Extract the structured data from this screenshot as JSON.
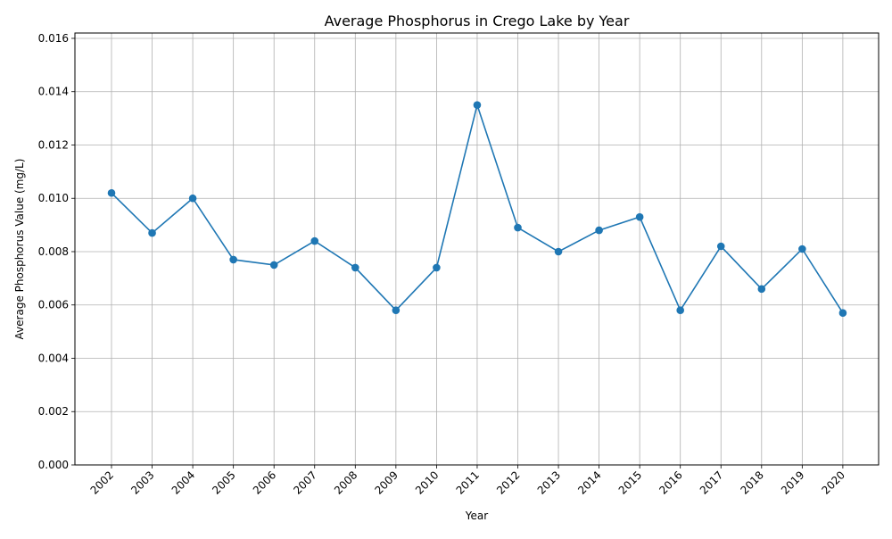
{
  "chart_data": {
    "type": "line",
    "title": "Average Phosphorus in Crego Lake by Year",
    "xlabel": "Year",
    "ylabel": "Average Phosphorus Value (mg/L)",
    "categories": [
      "2002",
      "2003",
      "2004",
      "2005",
      "2006",
      "2007",
      "2008",
      "2009",
      "2010",
      "2011",
      "2012",
      "2013",
      "2014",
      "2015",
      "2016",
      "2017",
      "2018",
      "2019",
      "2020"
    ],
    "series": [
      {
        "values": [
          0.0102,
          0.0087,
          0.01,
          0.0077,
          0.0075,
          0.0084,
          0.0074,
          0.0058,
          0.0074,
          0.0135,
          0.0089,
          0.008,
          0.0088,
          0.0093,
          0.0058,
          0.0082,
          0.0066,
          0.0081,
          0.0057
        ],
        "color": "#1f77b4",
        "marker": "circle"
      }
    ],
    "ylim": [
      0,
      0.0162
    ],
    "yticks": [
      "0.000",
      "0.002",
      "0.004",
      "0.006",
      "0.008",
      "0.010",
      "0.012",
      "0.014",
      "0.016"
    ],
    "x_tick_rotation": "45 degrees",
    "grid": true,
    "legend": "none"
  }
}
